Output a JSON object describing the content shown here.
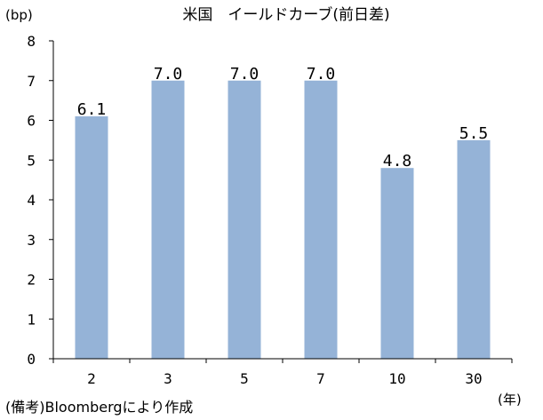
{
  "chart_data": {
    "type": "bar",
    "title": "米国　イールドカーブ(前日差)",
    "y_unit": "(bp)",
    "x_unit": "(年)",
    "categories": [
      "2",
      "3",
      "5",
      "7",
      "10",
      "30"
    ],
    "values": [
      6.1,
      7.0,
      7.0,
      7.0,
      4.8,
      5.5
    ],
    "data_labels": [
      "6.1",
      "7.0",
      "7.0",
      "7.0",
      "4.8",
      "5.5"
    ],
    "ylim": [
      0,
      8
    ],
    "yticks": [
      "0",
      "1",
      "2",
      "3",
      "4",
      "5",
      "6",
      "7",
      "8"
    ],
    "grid": false,
    "bar_color": "#95b3d7",
    "source": "(備考)Bloombergにより作成"
  }
}
